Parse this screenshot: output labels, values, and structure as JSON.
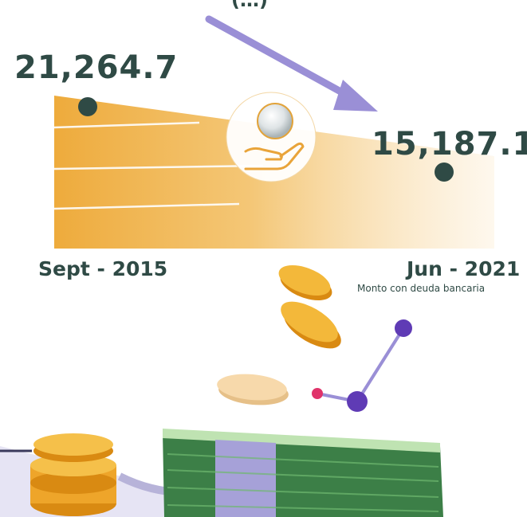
{
  "chart_data": {
    "type": "area",
    "top_label_fragment": "(…)",
    "points": [
      {
        "x": "Sept - 2015",
        "value": 21264.7,
        "label": "21,264.7"
      },
      {
        "x": "Jun - 2021",
        "value": 15187.1,
        "label": "15,187.1"
      }
    ],
    "caption": "Monto con deuda bancaria",
    "colors": {
      "area": "#f0b040",
      "marker": "#2f4a45",
      "arrow": "#9a8fd6",
      "text": "#2f4a45"
    }
  },
  "icons": [
    "coin-hand-icon",
    "trend-down-arrow",
    "coins-illustration",
    "banknotes-illustration",
    "line-graph-illustration"
  ]
}
